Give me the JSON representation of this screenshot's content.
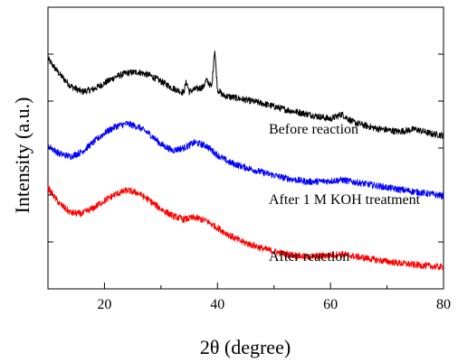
{
  "chart_data": {
    "type": "line",
    "xlabel": "2θ (degree)",
    "ylabel": "Intensity (a.u.)",
    "xlim": [
      10,
      80
    ],
    "ylim": [
      0,
      6
    ],
    "x_ticks": [
      20,
      40,
      60,
      80
    ],
    "x_tick_labels": [
      "20",
      "40",
      "60",
      "80"
    ],
    "y_tick_labels_shown": false,
    "grid": false,
    "legend": "none (inline series labels)",
    "series": [
      {
        "name": "Before reaction",
        "color": "#000000",
        "x": [
          10,
          12,
          14,
          16,
          18,
          20,
          22,
          24,
          26,
          28,
          30,
          32,
          34,
          34.5,
          35,
          36,
          37.5,
          38,
          39,
          39.5,
          40,
          41,
          44,
          48,
          52,
          56,
          60,
          62,
          64,
          68,
          72,
          75,
          78,
          80
        ],
        "values": [
          4.9,
          4.58,
          4.32,
          4.2,
          4.25,
          4.38,
          4.52,
          4.6,
          4.62,
          4.55,
          4.42,
          4.28,
          4.18,
          4.42,
          4.2,
          4.25,
          4.3,
          4.45,
          4.3,
          5.12,
          4.25,
          4.12,
          4.05,
          3.95,
          3.82,
          3.72,
          3.62,
          3.72,
          3.55,
          3.42,
          3.35,
          3.4,
          3.3,
          3.27
        ]
      },
      {
        "name": "After 1 M KOH treatment",
        "color": "#0000ff",
        "x": [
          10,
          12,
          14,
          16,
          18,
          20,
          22,
          24,
          26,
          28,
          30,
          32,
          34,
          36,
          38,
          40,
          42,
          44,
          48,
          52,
          56,
          60,
          62,
          64,
          68,
          72,
          76,
          80
        ],
        "values": [
          3.05,
          2.88,
          2.82,
          2.92,
          3.12,
          3.32,
          3.46,
          3.52,
          3.45,
          3.3,
          3.08,
          2.95,
          3.0,
          3.12,
          3.05,
          2.85,
          2.7,
          2.62,
          2.48,
          2.36,
          2.28,
          2.3,
          2.32,
          2.28,
          2.2,
          2.12,
          2.05,
          1.98
        ]
      },
      {
        "name": "After reaction",
        "color": "#ff0000",
        "x": [
          10,
          12,
          14,
          16,
          18,
          20,
          22,
          24,
          26,
          28,
          30,
          32,
          34,
          36,
          38,
          40,
          42,
          44,
          48,
          52,
          56,
          60,
          62,
          64,
          68,
          72,
          76,
          80
        ],
        "values": [
          2.15,
          1.82,
          1.62,
          1.6,
          1.72,
          1.88,
          2.02,
          2.1,
          2.04,
          1.88,
          1.7,
          1.56,
          1.48,
          1.52,
          1.45,
          1.3,
          1.15,
          1.02,
          0.86,
          0.74,
          0.68,
          0.72,
          0.74,
          0.7,
          0.62,
          0.55,
          0.5,
          0.46
        ]
      }
    ],
    "annotations": [
      {
        "text": "Before reaction",
        "series": 0
      },
      {
        "text": "After 1 M KOH treatment",
        "series": 1
      },
      {
        "text": "After reaction",
        "series": 2
      }
    ]
  }
}
